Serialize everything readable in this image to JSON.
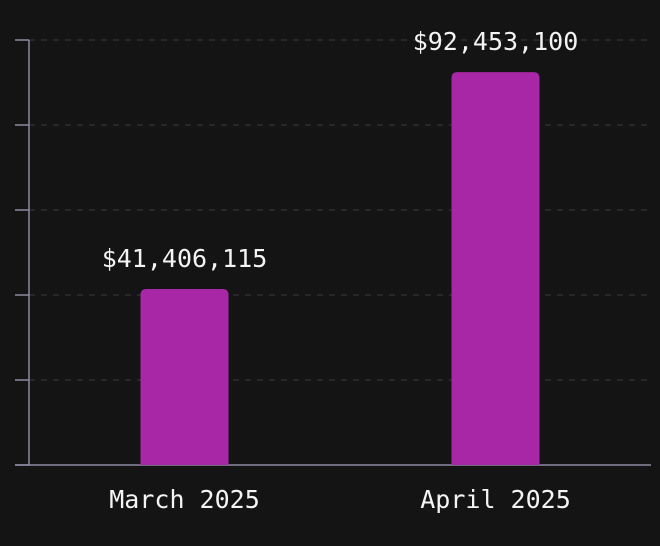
{
  "chart_data": {
    "type": "bar",
    "title": "",
    "xlabel": "",
    "ylabel": "",
    "categories": [
      "March 2025",
      "April 2025"
    ],
    "values": [
      41406115,
      92453100
    ],
    "value_labels": [
      "$41,406,115",
      "$92,453,100"
    ],
    "ylim": [
      0,
      100000000
    ],
    "y_ticks": [
      0,
      20000000,
      40000000,
      60000000,
      80000000,
      100000000
    ],
    "grid": true,
    "legend": "none",
    "colors": {
      "background": "#141414",
      "bar": "#a727a7",
      "grid": "#3a3a3a",
      "axis": "#8d8aa0",
      "text": "#f4f4f4"
    }
  }
}
